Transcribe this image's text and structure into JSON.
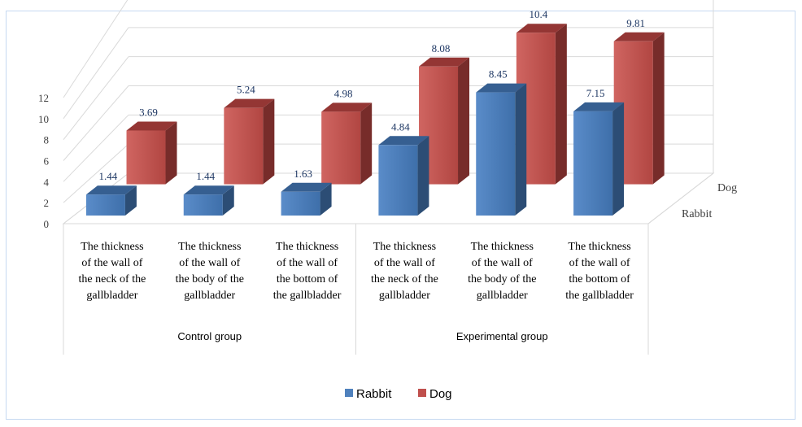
{
  "chart_data": {
    "type": "bar",
    "title": "",
    "xlabel": "",
    "ylabel": "",
    "ylim": [
      0,
      12
    ],
    "yticks": [
      0,
      2,
      4,
      6,
      8,
      10,
      12
    ],
    "grid": true,
    "legend_position": "bottom",
    "groups": [
      {
        "label": "Control group",
        "categories": [
          0,
          1,
          2
        ]
      },
      {
        "label": "Experimental group",
        "categories": [
          3,
          4,
          5
        ]
      }
    ],
    "categories": [
      "The thickness of the wall of the neck of the gallbladder",
      "The thickness of the wall of the body of the gallbladder",
      "The thickness of the wall of the bottom of the gallbladder",
      "The thickness of the wall of the neck of the gallbladder",
      "The thickness of the wall of the body of the gallbladder",
      "The thickness of the wall of the bottom of the gallbladder"
    ],
    "category_lines": [
      [
        "The thickness",
        "of the wall of",
        "the neck of the",
        "gallbladder"
      ],
      [
        "The thickness",
        "of the wall of",
        "the body of the",
        "gallbladder"
      ],
      [
        "The thickness",
        "of the wall of",
        "the bottom of",
        "the gallbladder"
      ],
      [
        "The thickness",
        "of the wall of",
        "the neck of the",
        "gallbladder"
      ],
      [
        "The thickness",
        "of the wall of",
        "the body of the",
        "gallbladder"
      ],
      [
        "The thickness",
        "of the wall of",
        "the bottom of",
        "the gallbladder"
      ]
    ],
    "series": [
      {
        "name": "Rabbit",
        "values": [
          1.44,
          1.44,
          1.63,
          4.84,
          8.45,
          7.15
        ],
        "labels": [
          "1.44",
          "1.44",
          "1.63",
          "4.84",
          "8.45",
          "7.15"
        ]
      },
      {
        "name": "Dog",
        "values": [
          3.69,
          5.24,
          4.98,
          8.08,
          10.4,
          9.81
        ],
        "labels": [
          "3.69",
          "5.24",
          "4.98",
          "8.08",
          "10.4",
          "9.81"
        ]
      }
    ],
    "colors": {
      "Rabbit": {
        "front": "#4f81bd",
        "side": "#2c4d75",
        "top": "#365f91"
      },
      "Dog": {
        "front": "#c0504d",
        "side": "#772c2a",
        "top": "#943634"
      }
    }
  }
}
